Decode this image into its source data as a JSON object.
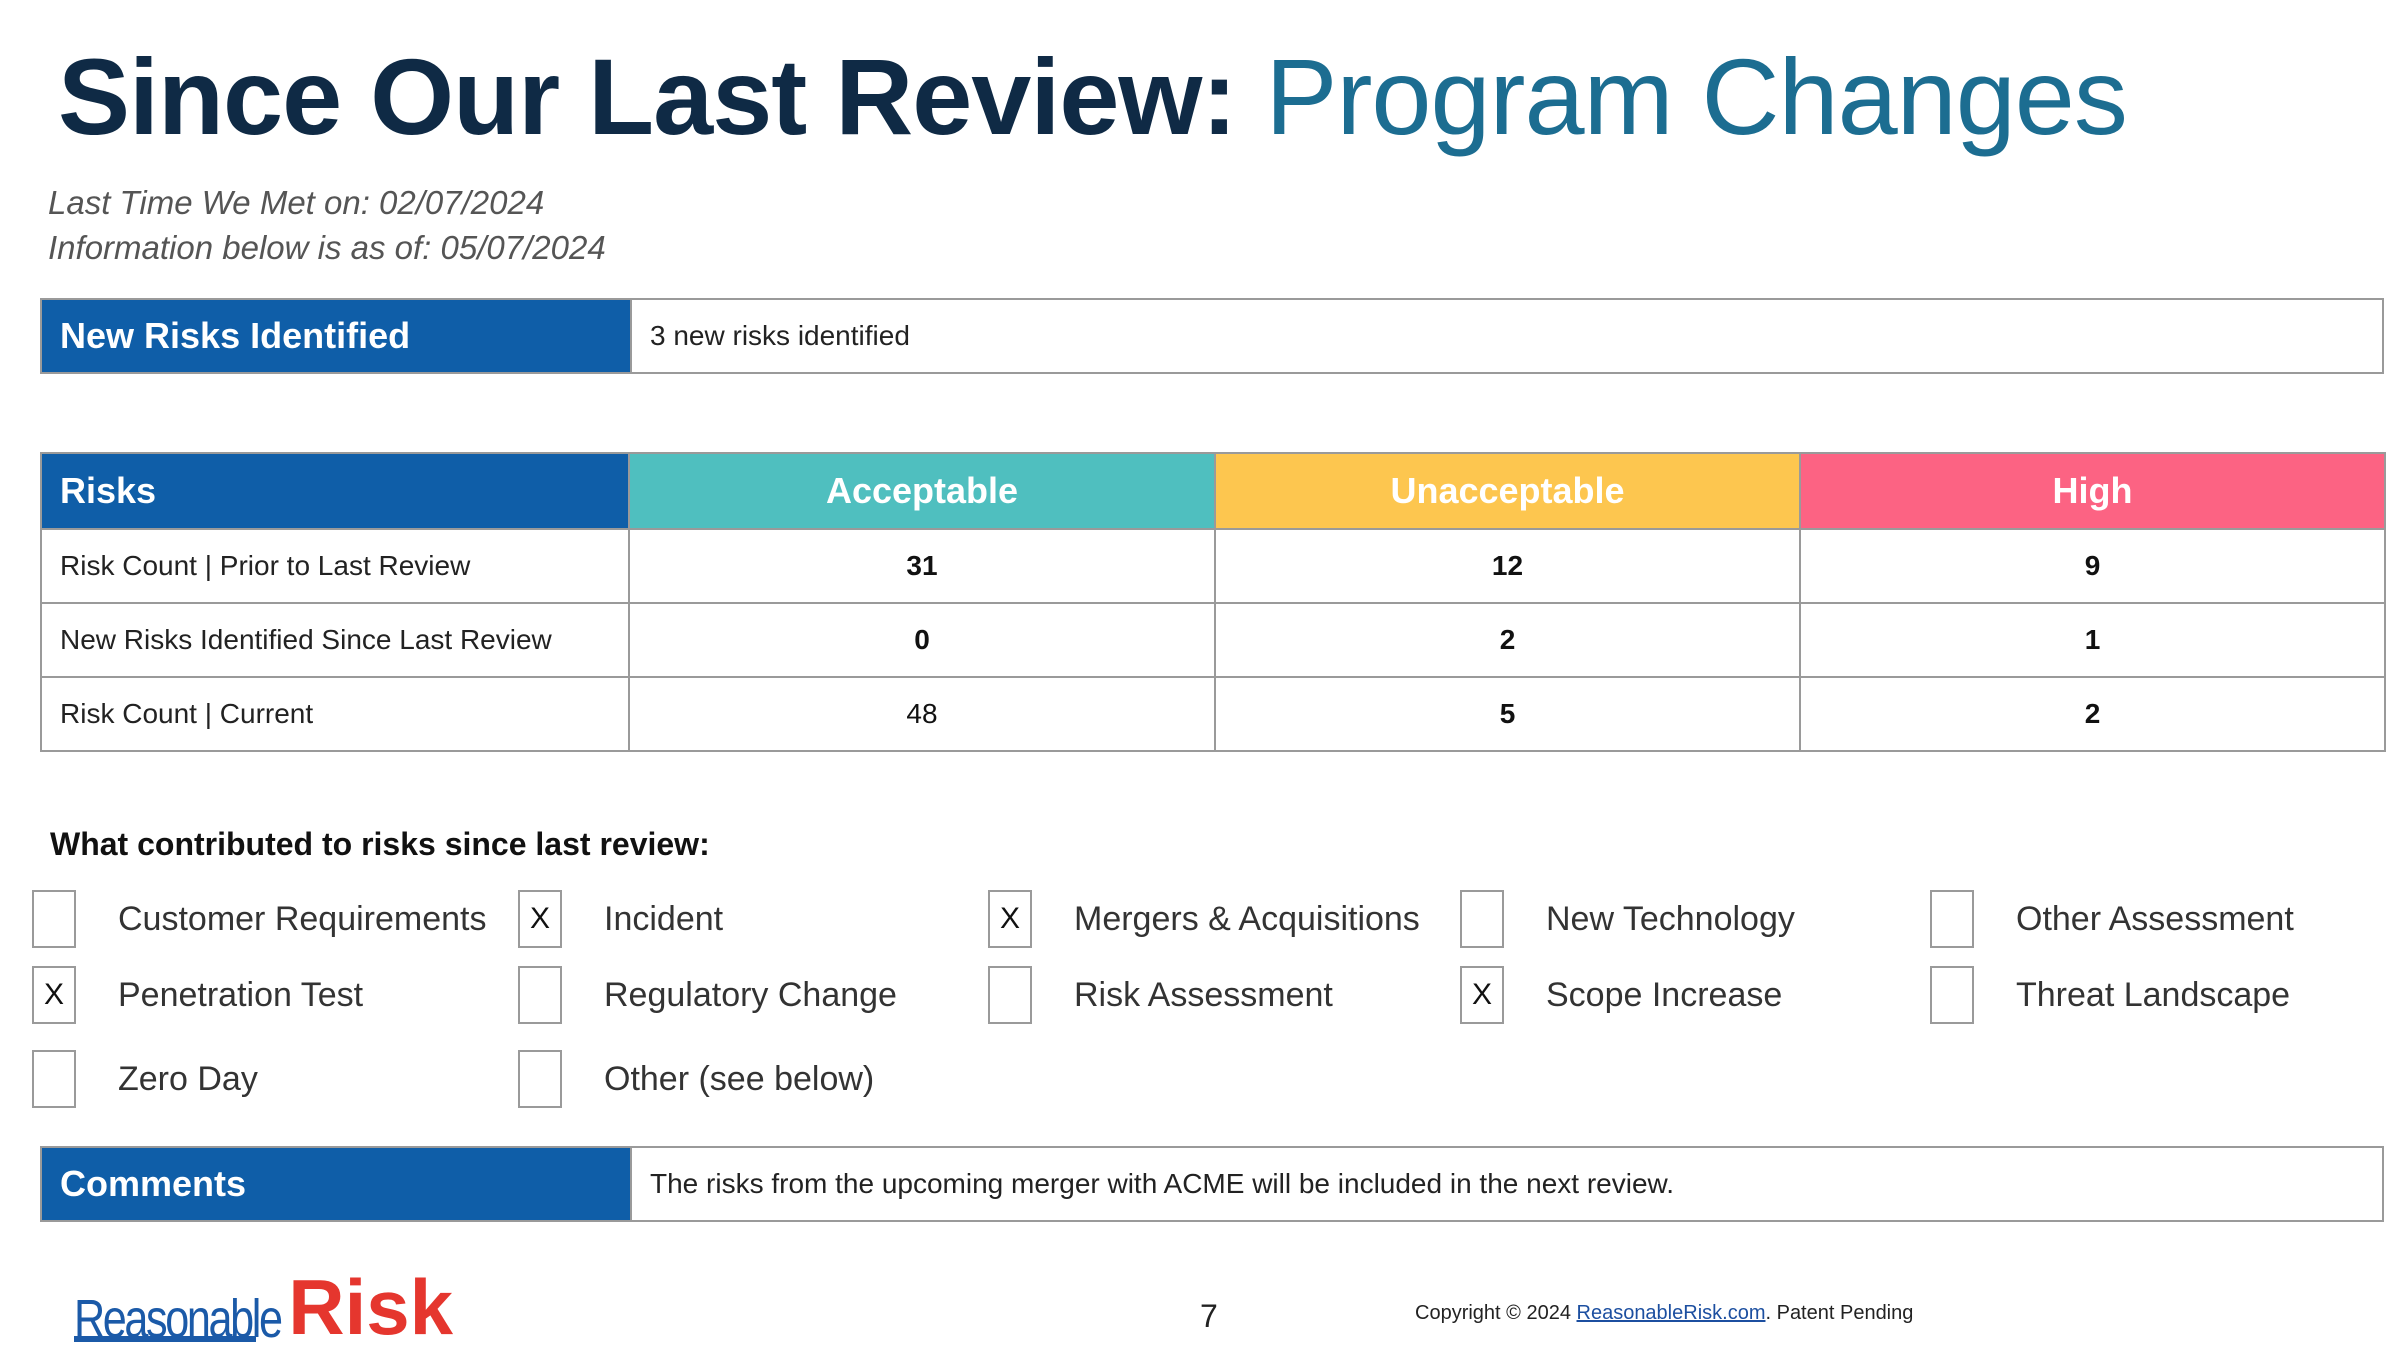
{
  "title": {
    "part1": "Since Our Last Review:",
    "part2": "Program Changes"
  },
  "meta": {
    "last_met": "Last Time We Met on: 02/07/2024",
    "as_of": "Information below is as of: 05/07/2024"
  },
  "new_risks": {
    "heading": "New Risks Identified",
    "value": "3 new risks identified"
  },
  "risk_table": {
    "headers": [
      "Risks",
      "Acceptable",
      "Unacceptable",
      "High"
    ],
    "header_colors": [
      "#0f5ea8",
      "#4fbfbf",
      "#fdc64f",
      "#fc6383"
    ],
    "rows": [
      {
        "label": "Risk Count | Prior to Last Review",
        "acceptable": "31",
        "unacceptable": "12",
        "high": "9"
      },
      {
        "label": "New Risks Identified Since Last Review",
        "acceptable": "0",
        "unacceptable": "2",
        "high": "1"
      },
      {
        "label": "Risk Count | Current",
        "acceptable": "48",
        "unacceptable": "5",
        "high": "2"
      }
    ]
  },
  "contributions": {
    "heading": "What contributed to risks since last review:",
    "items": [
      {
        "label": "Customer Requirements",
        "checked": ""
      },
      {
        "label": "Incident",
        "checked": "X"
      },
      {
        "label": "Mergers & Acquisitions",
        "checked": "X"
      },
      {
        "label": "New Technology",
        "checked": ""
      },
      {
        "label": "Other Assessment",
        "checked": ""
      },
      {
        "label": "Penetration Test",
        "checked": "X"
      },
      {
        "label": "Regulatory Change",
        "checked": ""
      },
      {
        "label": "Risk Assessment",
        "checked": ""
      },
      {
        "label": "Scope Increase",
        "checked": "X"
      },
      {
        "label": "Threat Landscape",
        "checked": ""
      },
      {
        "label": "Zero Day",
        "checked": ""
      },
      {
        "label": "Other (see below)",
        "checked": ""
      }
    ]
  },
  "comments": {
    "heading": "Comments",
    "value": "The risks from the upcoming merger with ACME will be included in the next review."
  },
  "footer": {
    "logo_part1": "Reasonable",
    "logo_part2": "Risk",
    "page_number": "7",
    "copyright_prefix": "Copyright © 2024 ",
    "copyright_link": "ReasonableRisk.com",
    "copyright_suffix": ". Patent Pending"
  },
  "colors": {
    "navy_title": "#0f2a45",
    "accent_title": "#1c6d91",
    "header_blue": "#0f5ea8",
    "logo_blue": "#1b5aa8",
    "logo_red": "#e5362e"
  }
}
